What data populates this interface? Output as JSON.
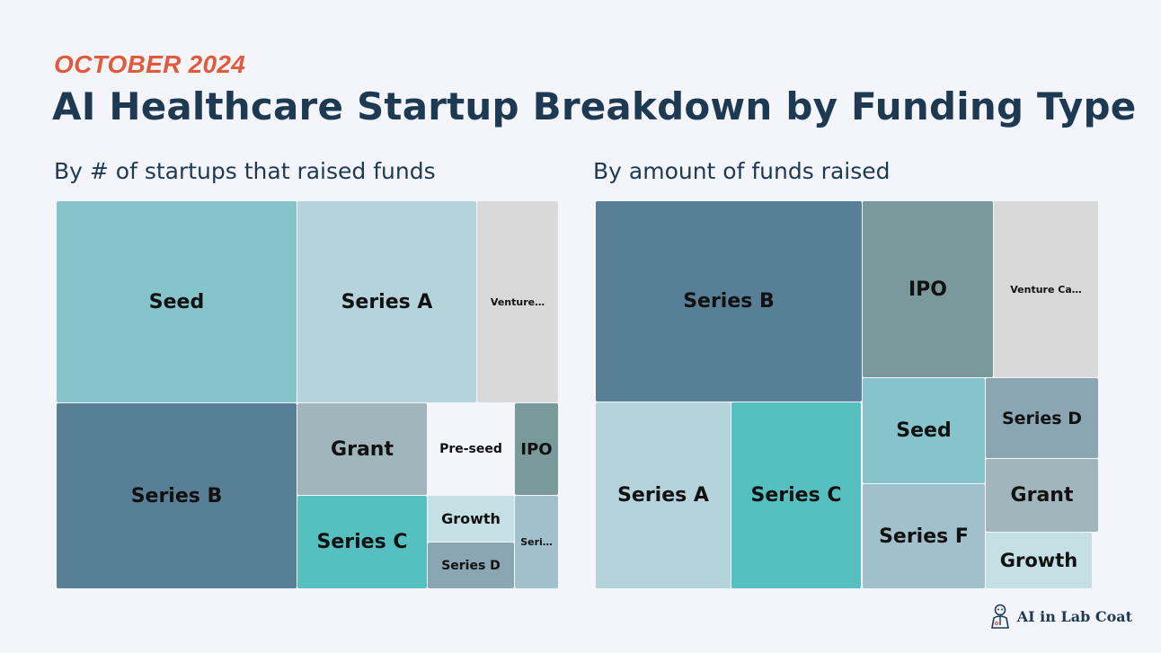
{
  "header": {
    "eyebrow": "OCTOBER 2024",
    "title": "AI Healthcare Startup Breakdown by Funding Type"
  },
  "chart_data": [
    {
      "type": "treemap",
      "title": "By # of startups that raised funds",
      "labels": [
        "Seed",
        "Series A",
        "Venture…",
        "Series B",
        "Grant",
        "Pre-seed",
        "IPO",
        "Series C",
        "Growth",
        "Series D",
        "Seri…"
      ],
      "categories": [
        "Seed",
        "Series A",
        "Venture Capital",
        "Series B",
        "Grant",
        "Pre-seed",
        "IPO",
        "Series C",
        "Growth",
        "Series D",
        "Series F"
      ],
      "values": [
        58.7,
        43.6,
        19.2,
        53.2,
        17.6,
        16.1,
        6.7,
        17.8,
        8.8,
        8.8,
        5.4
      ],
      "colors": [
        "#85c4ca",
        "#b5d3da",
        "#d9d9d9",
        "#577f95",
        "#a0b6bc",
        "#f4f5fa",
        "#7a999b",
        "#56bfc0",
        "#c4e0e5",
        "#8aa6b3",
        "#a0c0cc"
      ]
    },
    {
      "type": "treemap",
      "title": "By amount of funds raised",
      "labels": [
        "Series B",
        "IPO",
        "Venture Ca…",
        "Series A",
        "Series C",
        "Seed",
        "Series D",
        "Series F",
        "Grant",
        "Growth"
      ],
      "categories": [
        "Series B",
        "IPO",
        "Venture Capital",
        "Series A",
        "Series C",
        "Seed",
        "Series D",
        "Series F",
        "Grant",
        "Growth"
      ],
      "values": [
        65.2,
        28.3,
        24.8,
        30.6,
        29.5,
        16.6,
        12.7,
        16.8,
        11.6,
        9.6
      ],
      "colors": [
        "#577f95",
        "#7a999b",
        "#d9d9d9",
        "#b5d3da",
        "#56bfc0",
        "#85c4ca",
        "#8aa6b3",
        "#a0c0cc",
        "#a0b6bc",
        "#c4e0e5"
      ]
    }
  ],
  "brand": {
    "name": "AI in Lab Coat"
  }
}
